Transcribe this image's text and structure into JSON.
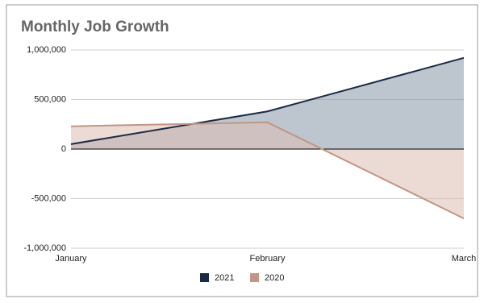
{
  "chart_data": {
    "type": "area",
    "title": "Monthly Job Growth",
    "categories": [
      "January",
      "February",
      "March"
    ],
    "series": [
      {
        "name": "2021",
        "color": "#1b2a44",
        "fill": "#8797a8",
        "values": [
          50000,
          380000,
          920000
        ]
      },
      {
        "name": "2020",
        "color": "#c29584",
        "fill": "#dcbdb3",
        "values": [
          230000,
          270000,
          -700000
        ]
      }
    ],
    "ylim": [
      -1000000,
      1000000
    ],
    "yticks": [
      {
        "value": -1000000,
        "label": "-1,000,000"
      },
      {
        "value": -500000,
        "label": "-500,000"
      },
      0,
      {
        "value": 500000,
        "label": "500,000"
      },
      {
        "value": 1000000,
        "label": "1,000,000"
      }
    ],
    "grid": true,
    "legend": "bottom"
  }
}
